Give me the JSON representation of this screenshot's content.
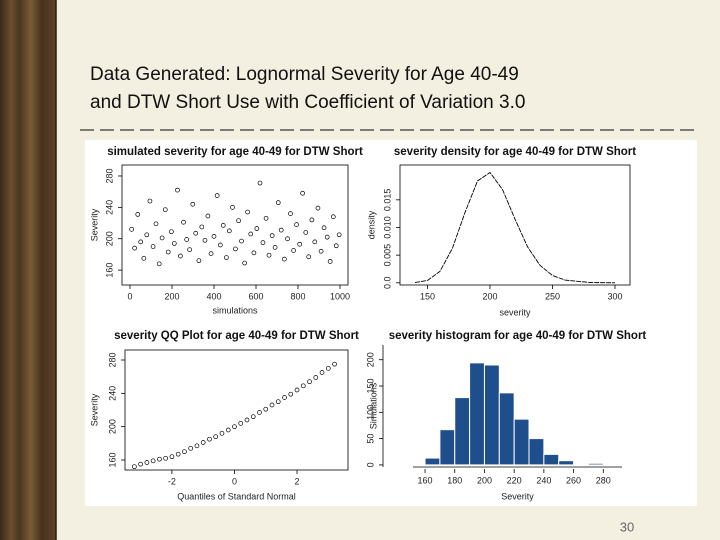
{
  "slide": {
    "title_lines": [
      "Data Generated: Lognormal Severity for Age 40-49",
      "and DTW Short Use with Coefficient of Variation 3.0"
    ],
    "page_number": "30"
  },
  "chart_data": [
    {
      "type": "scatter",
      "title": "simulated severity for age 40-49 for DTW Short",
      "xlabel": "simulations",
      "ylabel": "Severity",
      "xlim": [
        -38,
        1038
      ],
      "ylim": [
        141,
        294
      ],
      "xticks": [
        0,
        200,
        400,
        600,
        800,
        1000
      ],
      "yticks": [
        160,
        200,
        240,
        280
      ],
      "color": "#000000",
      "x": [
        8,
        22,
        37,
        51,
        66,
        80,
        95,
        110,
        124,
        139,
        153,
        168,
        182,
        197,
        211,
        226,
        240,
        255,
        270,
        284,
        299,
        313,
        328,
        342,
        357,
        371,
        386,
        400,
        415,
        430,
        444,
        459,
        473,
        488,
        502,
        517,
        531,
        546,
        560,
        575,
        590,
        604,
        619,
        633,
        648,
        662,
        677,
        691,
        706,
        720,
        735,
        750,
        764,
        779,
        793,
        808,
        822,
        837,
        851,
        866,
        880,
        895,
        910,
        924,
        939,
        953,
        968,
        982,
        996
      ],
      "values": [
        212,
        188,
        231,
        196,
        175,
        205,
        248,
        190,
        219,
        168,
        201,
        237,
        183,
        209,
        194,
        262,
        178,
        221,
        199,
        186,
        244,
        207,
        172,
        215,
        198,
        229,
        181,
        203,
        255,
        192,
        217,
        176,
        210,
        240,
        187,
        223,
        197,
        169,
        234,
        206,
        182,
        213,
        271,
        195,
        226,
        179,
        204,
        189,
        246,
        211,
        174,
        200,
        232,
        185,
        218,
        193,
        258,
        208,
        177,
        224,
        196,
        239,
        184,
        214,
        202,
        171,
        228,
        191,
        205
      ]
    },
    {
      "type": "line",
      "title": "severity density for age 40-49 for DTW Short",
      "xlabel": "severity",
      "ylabel": "density",
      "xlim": [
        128,
        312
      ],
      "ylim": [
        -0.0004,
        0.0213
      ],
      "xticks": [
        150,
        200,
        250,
        300
      ],
      "yticks": [
        {
          "value": 0,
          "label": "0.0"
        },
        0.005,
        {
          "value": 0.01,
          "label": "0.010"
        },
        0.015
      ],
      "color": "#000000",
      "x": [
        140,
        150,
        160,
        170,
        180,
        190,
        200,
        210,
        220,
        230,
        240,
        250,
        260,
        280,
        300
      ],
      "values": [
        5e-05,
        0.00042,
        0.00207,
        0.00627,
        0.01272,
        0.01841,
        0.01995,
        0.01687,
        0.01151,
        0.00652,
        0.00315,
        0.00132,
        0.00049,
        5e-05,
        0
      ]
    },
    {
      "type": "scatter",
      "title": "severity QQ Plot for age 40-49 for DTW Short",
      "xlabel": "Quantiles of Standard Normal",
      "ylabel": "Severity",
      "xlim": [
        -3.5,
        3.63
      ],
      "ylim": [
        148,
        292
      ],
      "xticks": [
        -2,
        0,
        2
      ],
      "yticks": [
        160,
        200,
        240,
        280
      ],
      "color": "#000000",
      "x": [
        -3.2,
        -3.0,
        -2.8,
        -2.6,
        -2.4,
        -2.2,
        -2.0,
        -1.8,
        -1.6,
        -1.4,
        -1.2,
        -1.0,
        -0.8,
        -0.6,
        -0.4,
        -0.2,
        0,
        0.2,
        0.4,
        0.6,
        0.8,
        1.0,
        1.2,
        1.4,
        1.6,
        1.8,
        2.0,
        2.2,
        2.4,
        2.6,
        2.8,
        3.0,
        3.2
      ],
      "values": [
        152,
        155,
        157,
        159,
        161,
        162,
        164,
        167,
        170,
        174,
        177,
        181,
        185,
        188,
        192,
        196,
        200,
        204,
        208,
        212,
        217,
        221,
        226,
        230,
        235,
        239,
        244,
        249,
        254,
        259,
        265,
        270,
        275
      ]
    },
    {
      "type": "histogram",
      "title": "severity histogram for age 40-49 for DTW Short",
      "xlabel": "Severity",
      "ylabel": "Simulations",
      "xlim": [
        146.5,
        298
      ],
      "ylim": [
        -4,
        228
      ],
      "xticks": [
        160,
        180,
        200,
        220,
        240,
        260,
        280
      ],
      "yticks": [
        0,
        50,
        100,
        150,
        200
      ],
      "color": "#1f4e8c",
      "bins": [
        160,
        170,
        180,
        190,
        200,
        210,
        220,
        230,
        240,
        250,
        260,
        270,
        280
      ],
      "values": [
        13,
        67,
        128,
        194,
        190,
        137,
        87,
        50,
        20,
        8,
        0,
        3
      ]
    }
  ]
}
